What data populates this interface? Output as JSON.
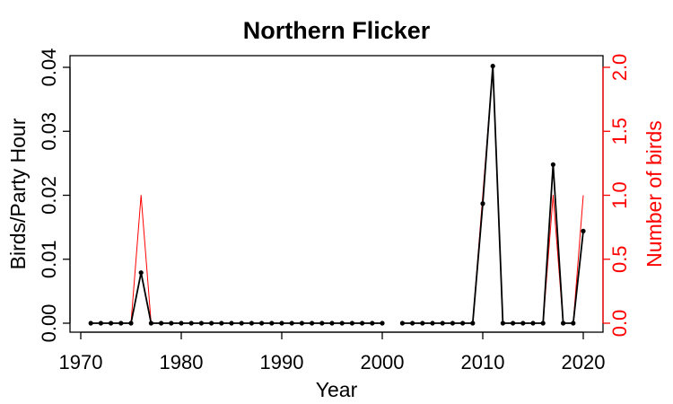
{
  "chart_data": {
    "type": "line",
    "title": "Northern Flicker",
    "xlabel": "Year",
    "ylabel": "Birds/Party Hour",
    "y2label": "Number of birds",
    "xlim": [
      1970,
      2020
    ],
    "ylim": [
      0,
      0.04
    ],
    "y2lim": [
      0,
      2.0
    ],
    "x_ticks": [
      "1970",
      "1980",
      "1990",
      "2000",
      "2010",
      "2020"
    ],
    "y_ticks": [
      "0.00",
      "0.01",
      "0.02",
      "0.03",
      "0.04"
    ],
    "y2_ticks": [
      "0.0",
      "0.5",
      "1.0",
      "1.5",
      "2.0"
    ],
    "grid": false,
    "colors": {
      "primary": "#000000",
      "secondary": "#ff0000"
    },
    "series": [
      {
        "name": "Birds/Party Hour",
        "axis": "left",
        "color": "#000000",
        "markers": true,
        "points": [
          [
            1971,
            0
          ],
          [
            1972,
            0
          ],
          [
            1973,
            0
          ],
          [
            1974,
            0
          ],
          [
            1975,
            0
          ],
          [
            1976,
            0.0079
          ],
          [
            1977,
            0
          ],
          [
            1978,
            0
          ],
          [
            1979,
            0
          ],
          [
            1980,
            0
          ],
          [
            1981,
            0
          ],
          [
            1982,
            0
          ],
          [
            1983,
            0
          ],
          [
            1984,
            0
          ],
          [
            1985,
            0
          ],
          [
            1986,
            0
          ],
          [
            1987,
            0
          ],
          [
            1988,
            0
          ],
          [
            1989,
            0
          ],
          [
            1990,
            0
          ],
          [
            1991,
            0
          ],
          [
            1992,
            0
          ],
          [
            1993,
            0
          ],
          [
            1994,
            0
          ],
          [
            1995,
            0
          ],
          [
            1996,
            0
          ],
          [
            1997,
            0
          ],
          [
            1998,
            0
          ],
          [
            1999,
            0
          ],
          [
            2000,
            0
          ],
          null,
          [
            2002,
            0
          ],
          [
            2003,
            0
          ],
          [
            2004,
            0
          ],
          [
            2005,
            0
          ],
          [
            2006,
            0
          ],
          [
            2007,
            0
          ],
          [
            2008,
            0
          ],
          [
            2009,
            0
          ],
          [
            2010,
            0.0187
          ],
          [
            2011,
            0.0402
          ],
          [
            2012,
            0
          ],
          [
            2013,
            0
          ],
          [
            2014,
            0
          ],
          [
            2015,
            0
          ],
          [
            2016,
            0
          ],
          [
            2017,
            0.0248
          ],
          [
            2018,
            0
          ],
          [
            2019,
            0
          ],
          [
            2020,
            0.0144
          ]
        ]
      },
      {
        "name": "Number of birds",
        "axis": "right",
        "color": "#ff0000",
        "markers": false,
        "points": [
          [
            1971,
            0
          ],
          [
            1972,
            0
          ],
          [
            1973,
            0
          ],
          [
            1974,
            0
          ],
          [
            1975,
            0
          ],
          [
            1976,
            1
          ],
          [
            1977,
            0
          ],
          [
            1978,
            0
          ],
          [
            1979,
            0
          ],
          [
            1980,
            0
          ],
          [
            1981,
            0
          ],
          [
            1982,
            0
          ],
          [
            1983,
            0
          ],
          [
            1984,
            0
          ],
          [
            1985,
            0
          ],
          [
            1986,
            0
          ],
          [
            1987,
            0
          ],
          [
            1988,
            0
          ],
          [
            1989,
            0
          ],
          [
            1990,
            0
          ],
          [
            1991,
            0
          ],
          [
            1992,
            0
          ],
          [
            1993,
            0
          ],
          [
            1994,
            0
          ],
          [
            1995,
            0
          ],
          [
            1996,
            0
          ],
          [
            1997,
            0
          ],
          [
            1998,
            0
          ],
          [
            1999,
            0
          ],
          [
            2000,
            0
          ],
          null,
          [
            2002,
            0
          ],
          [
            2003,
            0
          ],
          [
            2004,
            0
          ],
          [
            2005,
            0
          ],
          [
            2006,
            0
          ],
          [
            2007,
            0
          ],
          [
            2008,
            0
          ],
          [
            2009,
            0
          ],
          [
            2010,
            1
          ],
          [
            2011,
            2
          ],
          [
            2012,
            0
          ],
          [
            2013,
            0
          ],
          [
            2014,
            0
          ],
          [
            2015,
            0
          ],
          [
            2016,
            0
          ],
          [
            2017,
            1
          ],
          [
            2018,
            0
          ],
          [
            2019,
            0
          ],
          [
            2020,
            1
          ]
        ]
      }
    ]
  }
}
